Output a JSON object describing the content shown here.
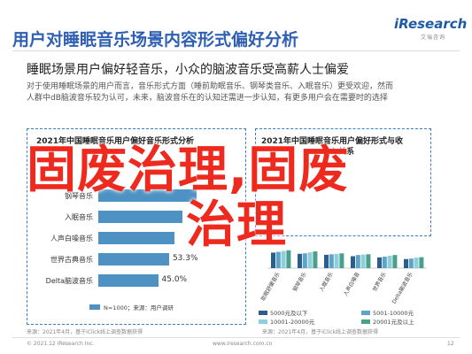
{
  "header": {
    "title": "用户对睡眠音乐场景内容形式偏好分析",
    "logo": "iResearch",
    "logo_sub": "艾瑞咨询"
  },
  "subtitle": "睡眠场景用户偏好轻音乐，小众的脑波音乐受高薪人士偏爱",
  "paragraph": [
    "对于使用睡眠场景的用户而言，音乐形式方面（睡前助眠音乐、钢琴类音乐、入眠音乐）更受欢迎，然而",
    "人群中dB脑波音乐较为认可，未来，脑波音乐在的认知还需进一步认知，有更多用户会在需要时的选择"
  ],
  "left_chart": {
    "title": "2021年中国睡眠音乐用户偏好音乐形式分析",
    "legend": "N=1000；来源：用户调研",
    "footnote": "来源：2021年4月，基于iClick线上调查数据获得"
  },
  "right_chart": {
    "title": "2021年中国睡眠音乐用户偏好形式与收",
    "subtitle": "入关系",
    "legend": [
      {
        "label": "5000元及以下",
        "color": "#2c5d8f"
      },
      {
        "label": "5001-10000元",
        "color": "#5ea4c7"
      },
      {
        "label": "10001-20000元",
        "color": "#8fcfdc"
      },
      {
        "label": "20001元及以上",
        "color": "#4aa08a"
      }
    ],
    "categories": [
      "助眠舒缓音乐",
      "钢琴音乐",
      "入眠音乐",
      "人声白噪音",
      "世界音乐",
      "Delta脑波音乐"
    ],
    "footnote": "来源：2021年4月，基于iClick线上调查数据获得"
  },
  "chart_data": [
    {
      "type": "bar",
      "orientation": "horizontal",
      "title": "2021年中国睡眠音乐用户偏好音乐形式分析",
      "categories": [
        "钢琴音乐",
        "入眠音乐",
        "人声白噪音乐",
        "世界古典音乐",
        "Delta脑波音乐"
      ],
      "values": [
        73.8,
        63.3,
        57.4,
        53.3,
        45.0
      ],
      "value_labels": [
        "",
        "",
        "",
        "53.3%",
        "45.0%"
      ],
      "xlim": [
        0,
        100
      ]
    },
    {
      "type": "bar",
      "title": "2021年中国睡眠音乐用户偏好形式与收入关系",
      "categories": [
        "助眠舒缓音乐",
        "钢琴音乐",
        "入眠音乐",
        "人声白噪音",
        "世界音乐",
        "Delta脑波音乐"
      ],
      "series": [
        {
          "name": "5000元及以下",
          "values": [
            65,
            60,
            56,
            50,
            45,
            38
          ]
        },
        {
          "name": "5001-10000元",
          "values": [
            68,
            62,
            58,
            55,
            48,
            40
          ]
        },
        {
          "name": "10001-20000元",
          "values": [
            72,
            66,
            60,
            57,
            52,
            44
          ]
        },
        {
          "name": "20001元及以上",
          "values": [
            75,
            70,
            62,
            58,
            55,
            46
          ]
        }
      ],
      "ylim": [
        0,
        100
      ]
    }
  ],
  "footer": {
    "copyright": "© 2021.12 iResearch Inc.",
    "site": "www.iresearch.com.cn",
    "page": "12"
  },
  "watermark": {
    "line1": "固废治理,固废",
    "line2": "治理",
    "color": "#ee2a1f"
  }
}
